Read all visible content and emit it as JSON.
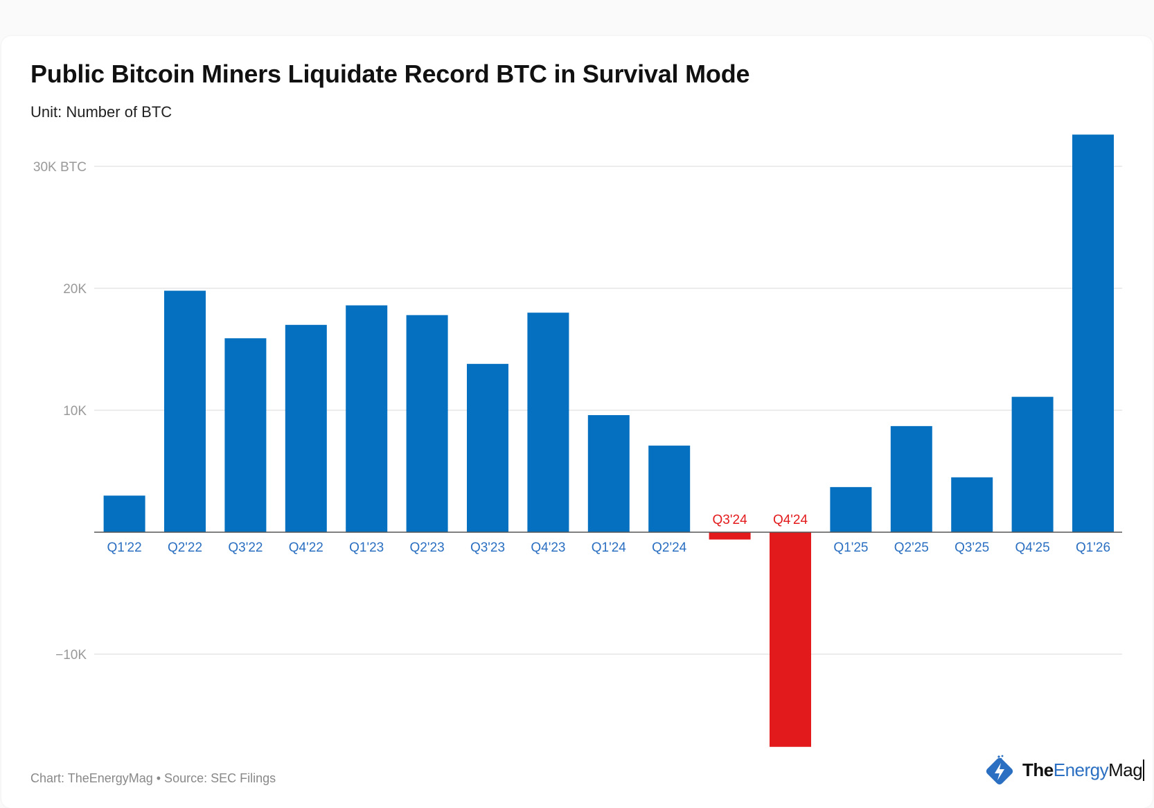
{
  "chart_data": {
    "type": "bar",
    "title": "Public Bitcoin Miners Liquidate Record BTC in Survival Mode",
    "subtitle": "Unit: Number of BTC",
    "categories": [
      "Q1'22",
      "Q2'22",
      "Q3'22",
      "Q4'22",
      "Q1'23",
      "Q2'23",
      "Q3'23",
      "Q4'23",
      "Q1'24",
      "Q2'24",
      "Q3'24",
      "Q4'24",
      "Q1'25",
      "Q2'25",
      "Q3'25",
      "Q4'25",
      "Q1'26"
    ],
    "values": [
      3000,
      19800,
      15900,
      17000,
      18600,
      17800,
      13800,
      18000,
      9600,
      7100,
      -600,
      -17600,
      3700,
      8700,
      4500,
      11100,
      32600
    ],
    "yticks": [
      {
        "value": 30000,
        "label": "30K BTC"
      },
      {
        "value": 20000,
        "label": "20K"
      },
      {
        "value": 10000,
        "label": "10K"
      },
      {
        "value": -10000,
        "label": "−10K"
      }
    ],
    "ylim": [
      -18000,
      33000
    ],
    "grid": true,
    "colors": {
      "positive": "#0570c0",
      "negative": "#e31a1c",
      "positive_label": "#2a6fc1",
      "negative_label": "#e31a1c"
    },
    "xlabel": "",
    "ylabel": ""
  },
  "footer": "Chart: TheEnergyMag • Source: SEC Filings",
  "logo": {
    "text_a": "The",
    "text_b": "Energy",
    "text_c": "Mag",
    "icon": "lightning-bolt-diamond-icon"
  }
}
